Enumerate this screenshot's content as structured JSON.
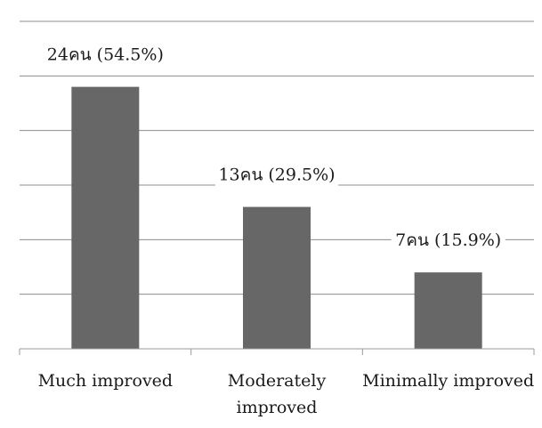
{
  "chart_data": {
    "type": "bar",
    "categories": [
      "Much improved",
      "Moderately improved",
      "Minimally improved"
    ],
    "category_lines": [
      [
        "Much improved"
      ],
      [
        "Moderately",
        "improved"
      ],
      [
        "Minimally improved"
      ]
    ],
    "values": [
      24,
      13,
      7
    ],
    "data_labels": [
      "24คน (54.5%)",
      "13คน (29.5%)",
      "7คน (15.9%)"
    ],
    "ylim": [
      0,
      30
    ],
    "grid": true,
    "legend": "none",
    "bar_color": "#676767",
    "grid_color": "#8c8c8c",
    "axis_color": "#9a9a9a"
  }
}
